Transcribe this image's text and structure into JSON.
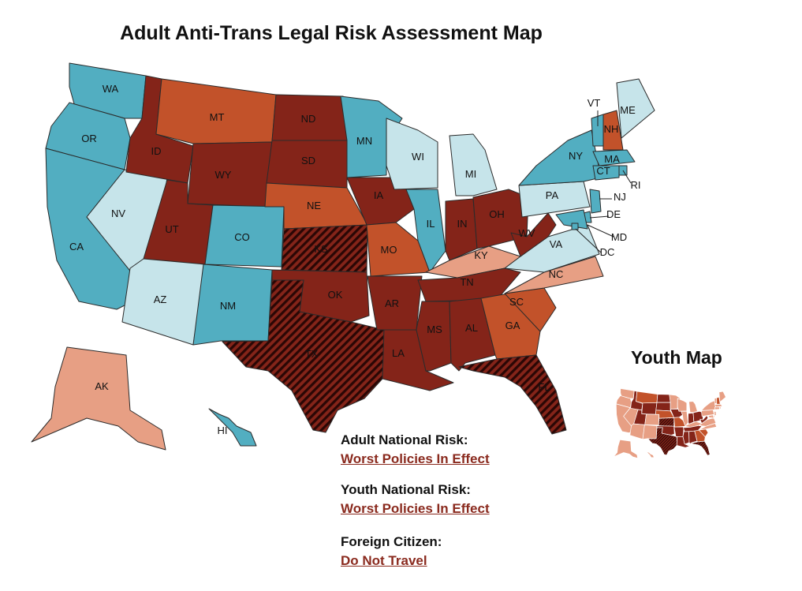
{
  "title": "Adult Anti-Trans Legal Risk Assessment Map",
  "youth_title": "Youth Map",
  "colors": {
    "lightblue": "#c6e4ea",
    "teal": "#52aec1",
    "salmon": "#e79f84",
    "orange": "#c2522a",
    "darkred": "#842419",
    "hatched": "#3b0c08",
    "risk_text": "#8a2a1e"
  },
  "states": [
    {
      "abbr": "WA",
      "risk": "teal"
    },
    {
      "abbr": "OR",
      "risk": "teal"
    },
    {
      "abbr": "CA",
      "risk": "teal"
    },
    {
      "abbr": "NV",
      "risk": "lightblue"
    },
    {
      "abbr": "ID",
      "risk": "darkred"
    },
    {
      "abbr": "MT",
      "risk": "orange"
    },
    {
      "abbr": "WY",
      "risk": "darkred"
    },
    {
      "abbr": "UT",
      "risk": "darkred"
    },
    {
      "abbr": "AZ",
      "risk": "lightblue"
    },
    {
      "abbr": "CO",
      "risk": "teal"
    },
    {
      "abbr": "NM",
      "risk": "teal"
    },
    {
      "abbr": "ND",
      "risk": "darkred"
    },
    {
      "abbr": "SD",
      "risk": "darkred"
    },
    {
      "abbr": "NE",
      "risk": "orange"
    },
    {
      "abbr": "KS",
      "risk": "hatched"
    },
    {
      "abbr": "OK",
      "risk": "darkred"
    },
    {
      "abbr": "TX",
      "risk": "hatched"
    },
    {
      "abbr": "MN",
      "risk": "teal"
    },
    {
      "abbr": "IA",
      "risk": "darkred"
    },
    {
      "abbr": "MO",
      "risk": "orange"
    },
    {
      "abbr": "AR",
      "risk": "darkred"
    },
    {
      "abbr": "LA",
      "risk": "darkred"
    },
    {
      "abbr": "WI",
      "risk": "lightblue"
    },
    {
      "abbr": "IL",
      "risk": "teal"
    },
    {
      "abbr": "MI",
      "risk": "lightblue"
    },
    {
      "abbr": "IN",
      "risk": "darkred"
    },
    {
      "abbr": "OH",
      "risk": "darkred"
    },
    {
      "abbr": "KY",
      "risk": "salmon"
    },
    {
      "abbr": "TN",
      "risk": "darkred"
    },
    {
      "abbr": "MS",
      "risk": "darkred"
    },
    {
      "abbr": "AL",
      "risk": "darkred"
    },
    {
      "abbr": "GA",
      "risk": "orange"
    },
    {
      "abbr": "FL",
      "risk": "hatched"
    },
    {
      "abbr": "SC",
      "risk": "orange"
    },
    {
      "abbr": "NC",
      "risk": "salmon"
    },
    {
      "abbr": "VA",
      "risk": "lightblue"
    },
    {
      "abbr": "WV",
      "risk": "darkred"
    },
    {
      "abbr": "PA",
      "risk": "lightblue"
    },
    {
      "abbr": "NY",
      "risk": "teal"
    },
    {
      "abbr": "VT",
      "risk": "teal"
    },
    {
      "abbr": "NH",
      "risk": "orange"
    },
    {
      "abbr": "ME",
      "risk": "lightblue"
    },
    {
      "abbr": "MA",
      "risk": "teal"
    },
    {
      "abbr": "RI",
      "risk": "teal"
    },
    {
      "abbr": "CT",
      "risk": "teal"
    },
    {
      "abbr": "NJ",
      "risk": "teal"
    },
    {
      "abbr": "DE",
      "risk": "teal"
    },
    {
      "abbr": "MD",
      "risk": "teal"
    },
    {
      "abbr": "DC",
      "risk": "teal"
    },
    {
      "abbr": "AK",
      "risk": "salmon"
    },
    {
      "abbr": "HI",
      "risk": "teal"
    }
  ],
  "risk": {
    "adult_label": "Adult National Risk:",
    "adult_value": "Worst Policies In Effect",
    "youth_label": "Youth National Risk:",
    "youth_value": "Worst Policies In Effect",
    "foreign_label": "Foreign Citizen:",
    "foreign_value": "Do Not Travel"
  }
}
